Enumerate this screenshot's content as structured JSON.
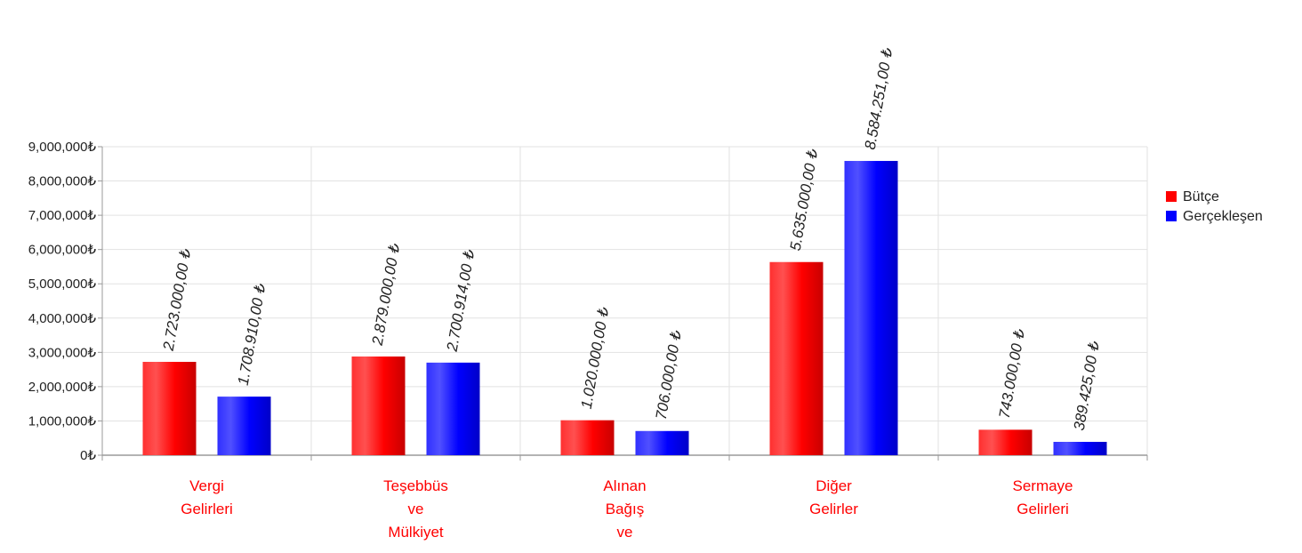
{
  "chart_data": {
    "type": "bar",
    "categories": [
      [
        "Vergi",
        "Gelirleri"
      ],
      [
        "Teşebbüs",
        "ve",
        "Mülkiyet"
      ],
      [
        "Alınan",
        "Bağış",
        "ve"
      ],
      [
        "Diğer",
        "Gelirler"
      ],
      [
        "Sermaye",
        "Gelirleri"
      ]
    ],
    "series": [
      {
        "name": "Bütçe",
        "color": "#ff0000",
        "values": [
          2723000,
          2879000,
          1020000,
          5635000,
          743000
        ],
        "labels": [
          "2.723.000,00 ₺",
          "2.879.000,00 ₺",
          "1.020.000,00 ₺",
          "5.635.000,00 ₺",
          "743.000,00 ₺"
        ]
      },
      {
        "name": "Gerçekleşen",
        "color": "#0000ff",
        "values": [
          1708910,
          2700914,
          706000,
          8584251,
          389425
        ],
        "labels": [
          "1.708.910,00 ₺",
          "2.700.914,00 ₺",
          "706.000,00 ₺",
          "8.584.251,00 ₺",
          "389.425,00 ₺"
        ]
      }
    ],
    "ylim": [
      0,
      9000000
    ],
    "yticks": [
      "0₺",
      "1,000,000₺",
      "2,000,000₺",
      "3,000,000₺",
      "4,000,000₺",
      "5,000,000₺",
      "6,000,000₺",
      "7,000,000₺",
      "8,000,000₺",
      "9,000,000₺"
    ],
    "category_label_color": "#ff0000",
    "grid": true,
    "legend_position": "right"
  }
}
